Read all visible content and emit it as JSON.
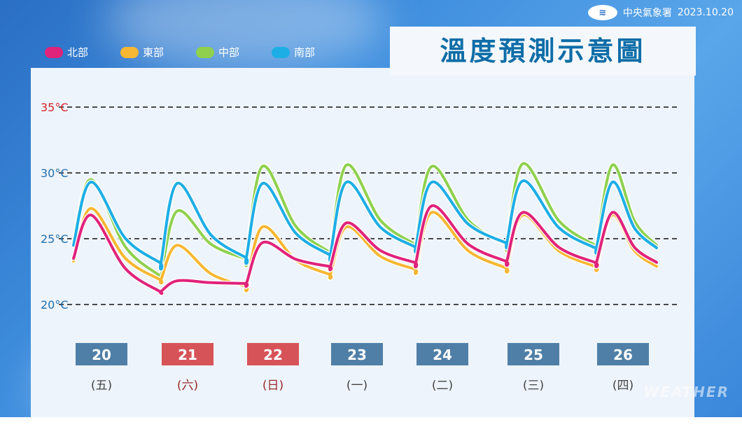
{
  "header": {
    "agency": "中央氣象署",
    "date": "2023.10.20",
    "logo_icon": "cwa-logo-icon",
    "title": "溫度預測示意圖"
  },
  "watermark": "WEATHER",
  "chart_data": {
    "type": "line",
    "title": "溫度預測示意圖",
    "ylim": [
      20,
      35
    ],
    "y_ticks": [
      {
        "value": 35,
        "label": "35°C",
        "color": "#d3262a"
      },
      {
        "value": 30,
        "label": "30°C",
        "color": "#1f6fae"
      },
      {
        "value": 25,
        "label": "25°C",
        "color": "#1f6fae"
      },
      {
        "value": 20,
        "label": "20°C",
        "color": "#1f6fae"
      }
    ],
    "grid": "dashed",
    "days": [
      {
        "date": "20",
        "weekday": "(五)",
        "color": "#4f7fa6",
        "weekday_color": "#444444"
      },
      {
        "date": "21",
        "weekday": "(六)",
        "color": "#d65358",
        "weekday_color": "#9a2a2a"
      },
      {
        "date": "22",
        "weekday": "(日)",
        "color": "#d65358",
        "weekday_color": "#9a2a2a"
      },
      {
        "date": "23",
        "weekday": "(一)",
        "color": "#4f7fa6",
        "weekday_color": "#444444"
      },
      {
        "date": "24",
        "weekday": "(二)",
        "color": "#4f7fa6",
        "weekday_color": "#444444"
      },
      {
        "date": "25",
        "weekday": "(三)",
        "color": "#4f7fa6",
        "weekday_color": "#444444"
      },
      {
        "date": "26",
        "weekday": "(四)",
        "color": "#4f7fa6",
        "weekday_color": "#444444"
      }
    ],
    "series": [
      {
        "name": "北部",
        "color": "#e0237b",
        "min": [
          23.5,
          21.0,
          21.6,
          22.9,
          23.2,
          23.3,
          23.2
        ],
        "max": [
          26.8,
          21.8,
          24.7,
          26.2,
          27.5,
          27.0,
          27.0
        ]
      },
      {
        "name": "東部",
        "color": "#f7b733",
        "min": [
          23.3,
          21.9,
          21.4,
          22.3,
          22.7,
          22.8,
          22.9
        ],
        "max": [
          27.3,
          24.5,
          25.9,
          25.9,
          27.0,
          26.8,
          26.8
        ]
      },
      {
        "name": "中部",
        "color": "#8fd14f",
        "min": [
          24.8,
          22.2,
          23.5,
          24.0,
          24.6,
          24.6,
          24.5
        ],
        "max": [
          29.5,
          27.1,
          30.5,
          30.6,
          30.5,
          30.7,
          30.6
        ]
      },
      {
        "name": "南部",
        "color": "#1eaee6",
        "min": [
          24.5,
          23.2,
          23.6,
          23.8,
          24.4,
          24.7,
          24.3
        ],
        "max": [
          29.3,
          29.2,
          29.2,
          29.3,
          29.3,
          29.4,
          29.3
        ]
      }
    ]
  }
}
